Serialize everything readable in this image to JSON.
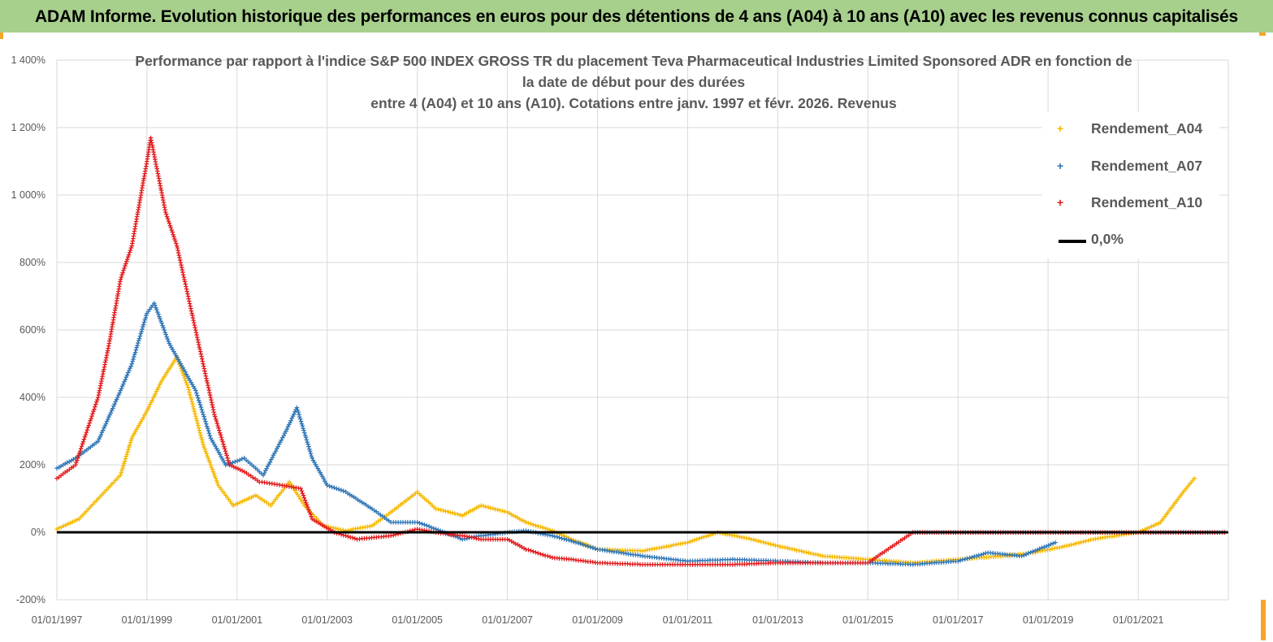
{
  "banner": {
    "title": "ADAM Informe. Evolution historique des performances en euros pour des détentions de 4 ans (A04) à 10 ans (A10) avec les revenus connus capitalisés",
    "color": "#a8d08d"
  },
  "chart_data": {
    "type": "scatter",
    "title_lines": [
      "Performance par rapport à l'indice S&P 500 INDEX GROSS TR  du placement Teva Pharmaceutical Industries Limited Sponsored ADR en fonction de",
      "la date de début pour des durées",
      "entre 4 (A04) et 10 ans (A10). Cotations entre janv. 1997 et févr. 2026. Revenus"
    ],
    "xlabel": "",
    "ylabel": "",
    "x_range": [
      "1997-01-01",
      "2023-01-01"
    ],
    "ylim": [
      -200,
      1400
    ],
    "y_ticks": [
      -200,
      0,
      200,
      400,
      600,
      800,
      1000,
      1200,
      1400
    ],
    "y_tick_labels": [
      "-200%",
      "0%",
      "200%",
      "400%",
      "600%",
      "800%",
      "1 000%",
      "1 200%",
      "1 400%"
    ],
    "x_ticks": [
      "1997-01-01",
      "1999-01-01",
      "2001-01-01",
      "2003-01-01",
      "2005-01-01",
      "2007-01-01",
      "2009-01-01",
      "2011-01-01",
      "2013-01-01",
      "2015-01-01",
      "2017-01-01",
      "2019-01-01",
      "2021-01-01"
    ],
    "x_tick_labels": [
      "01/01/1997",
      "01/01/1999",
      "01/01/2001",
      "01/01/2003",
      "01/01/2005",
      "01/01/2007",
      "01/01/2009",
      "01/01/2011",
      "01/01/2013",
      "01/01/2015",
      "01/01/2017",
      "01/01/2019",
      "01/01/2021"
    ],
    "grid": true,
    "legend_position": "top-right",
    "series": [
      {
        "name": "Rendement_A04",
        "color": "#f5b800",
        "marker": "+",
        "points": [
          [
            "1997-01-01",
            10
          ],
          [
            "1997-07-01",
            40
          ],
          [
            "1997-12-01",
            100
          ],
          [
            "1998-06-01",
            170
          ],
          [
            "1998-09-01",
            280
          ],
          [
            "1999-01-01",
            360
          ],
          [
            "1999-05-01",
            450
          ],
          [
            "1999-09-01",
            520
          ],
          [
            "1999-12-01",
            430
          ],
          [
            "2000-04-01",
            260
          ],
          [
            "2000-08-01",
            140
          ],
          [
            "2000-12-01",
            80
          ],
          [
            "2001-06-01",
            110
          ],
          [
            "2001-10-01",
            80
          ],
          [
            "2002-03-01",
            150
          ],
          [
            "2002-07-01",
            80
          ],
          [
            "2002-12-01",
            20
          ],
          [
            "2003-06-01",
            5
          ],
          [
            "2004-01-01",
            20
          ],
          [
            "2004-06-01",
            60
          ],
          [
            "2005-01-01",
            120
          ],
          [
            "2005-06-01",
            70
          ],
          [
            "2006-01-01",
            50
          ],
          [
            "2006-06-01",
            80
          ],
          [
            "2007-01-01",
            60
          ],
          [
            "2007-06-01",
            30
          ],
          [
            "2008-01-01",
            5
          ],
          [
            "2008-06-01",
            -20
          ],
          [
            "2009-01-01",
            -50
          ],
          [
            "2010-01-01",
            -55
          ],
          [
            "2011-01-01",
            -30
          ],
          [
            "2011-09-01",
            0
          ],
          [
            "2012-06-01",
            -20
          ],
          [
            "2013-01-01",
            -40
          ],
          [
            "2014-01-01",
            -70
          ],
          [
            "2015-01-01",
            -80
          ],
          [
            "2016-01-01",
            -90
          ],
          [
            "2017-01-01",
            -80
          ],
          [
            "2018-01-01",
            -70
          ],
          [
            "2018-09-01",
            -60
          ],
          [
            "2019-06-01",
            -40
          ],
          [
            "2020-01-01",
            -20
          ],
          [
            "2021-01-01",
            0
          ],
          [
            "2021-07-01",
            30
          ],
          [
            "2022-01-01",
            120
          ],
          [
            "2022-04-01",
            160
          ]
        ]
      },
      {
        "name": "Rendement_A07",
        "color": "#2e75b6",
        "marker": "+",
        "points": [
          [
            "1997-01-01",
            190
          ],
          [
            "1997-06-01",
            220
          ],
          [
            "1997-12-01",
            270
          ],
          [
            "1998-06-01",
            420
          ],
          [
            "1998-09-01",
            500
          ],
          [
            "1999-01-01",
            650
          ],
          [
            "1999-03-01",
            680
          ],
          [
            "1999-07-01",
            560
          ],
          [
            "1999-10-01",
            500
          ],
          [
            "2000-02-01",
            420
          ],
          [
            "2000-06-01",
            280
          ],
          [
            "2000-10-01",
            200
          ],
          [
            "2001-03-01",
            220
          ],
          [
            "2001-08-01",
            170
          ],
          [
            "2002-02-01",
            300
          ],
          [
            "2002-05-01",
            370
          ],
          [
            "2002-09-01",
            220
          ],
          [
            "2003-01-01",
            140
          ],
          [
            "2003-06-01",
            120
          ],
          [
            "2004-01-01",
            70
          ],
          [
            "2004-06-01",
            30
          ],
          [
            "2005-01-01",
            30
          ],
          [
            "2005-06-01",
            10
          ],
          [
            "2006-01-01",
            -20
          ],
          [
            "2006-06-01",
            -10
          ],
          [
            "2007-01-01",
            0
          ],
          [
            "2007-06-01",
            5
          ],
          [
            "2008-01-01",
            -10
          ],
          [
            "2008-06-01",
            -25
          ],
          [
            "2009-01-01",
            -50
          ],
          [
            "2010-01-01",
            -70
          ],
          [
            "2011-01-01",
            -85
          ],
          [
            "2012-01-01",
            -80
          ],
          [
            "2013-01-01",
            -85
          ],
          [
            "2014-01-01",
            -90
          ],
          [
            "2015-01-01",
            -90
          ],
          [
            "2016-01-01",
            -95
          ],
          [
            "2017-01-01",
            -85
          ],
          [
            "2017-09-01",
            -60
          ],
          [
            "2018-06-01",
            -70
          ],
          [
            "2019-03-01",
            -30
          ]
        ]
      },
      {
        "name": "Rendement_A10",
        "color": "#e31a1c",
        "marker": "+",
        "points": [
          [
            "1997-01-01",
            160
          ],
          [
            "1997-06-01",
            200
          ],
          [
            "1997-12-01",
            400
          ],
          [
            "1998-03-01",
            560
          ],
          [
            "1998-06-01",
            750
          ],
          [
            "1998-09-01",
            850
          ],
          [
            "1999-01-01",
            1100
          ],
          [
            "1999-02-01",
            1170
          ],
          [
            "1999-06-01",
            950
          ],
          [
            "1999-09-01",
            850
          ],
          [
            "1999-12-01",
            700
          ],
          [
            "2000-03-01",
            550
          ],
          [
            "2000-07-01",
            350
          ],
          [
            "2000-11-01",
            200
          ],
          [
            "2001-03-01",
            180
          ],
          [
            "2001-07-01",
            150
          ],
          [
            "2002-01-01",
            140
          ],
          [
            "2002-06-01",
            130
          ],
          [
            "2002-09-01",
            40
          ],
          [
            "2003-03-01",
            0
          ],
          [
            "2003-09-01",
            -20
          ],
          [
            "2004-06-01",
            -10
          ],
          [
            "2005-01-01",
            10
          ],
          [
            "2005-06-01",
            0
          ],
          [
            "2006-01-01",
            -10
          ],
          [
            "2006-06-01",
            -20
          ],
          [
            "2007-01-01",
            -20
          ],
          [
            "2007-06-01",
            -50
          ],
          [
            "2008-01-01",
            -75
          ],
          [
            "2008-06-01",
            -80
          ],
          [
            "2009-01-01",
            -90
          ],
          [
            "2010-01-01",
            -95
          ],
          [
            "2011-01-01",
            -95
          ],
          [
            "2012-01-01",
            -95
          ],
          [
            "2013-01-01",
            -90
          ],
          [
            "2014-01-01",
            -90
          ],
          [
            "2015-01-01",
            -90
          ],
          [
            "2016-01-01",
            0
          ],
          [
            "2017-01-01",
            0
          ],
          [
            "2018-01-01",
            0
          ],
          [
            "2019-01-01",
            0
          ],
          [
            "2020-01-01",
            0
          ],
          [
            "2021-01-01",
            0
          ],
          [
            "2022-01-01",
            0
          ],
          [
            "2022-12-01",
            0
          ]
        ]
      }
    ],
    "reference_line": {
      "name": "0,0%",
      "value": 0,
      "color": "#000000"
    },
    "grid_color": "#d9d9d9",
    "axis_label_color": "#595959"
  }
}
